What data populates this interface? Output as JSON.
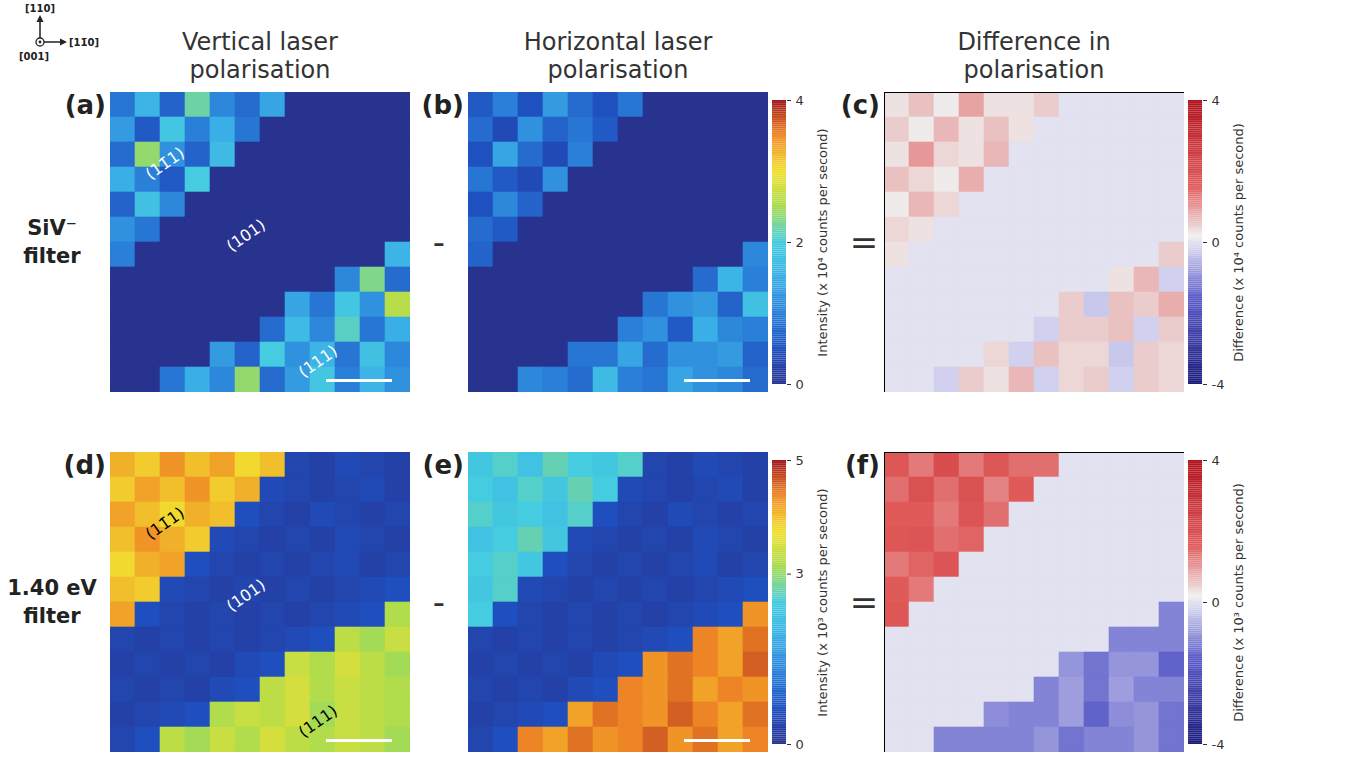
{
  "orientation_axes": {
    "up": "[110]",
    "right": "[11̄0]",
    "out": "[001]"
  },
  "column_titles": [
    "Vertical laser polarisation",
    "Horizontal laser polarisation",
    "Difference in polarisation"
  ],
  "row_titles": [
    "SiV⁻ filter",
    "1.40 eV filter"
  ],
  "operators": [
    "-",
    "="
  ],
  "colorbars": [
    {
      "label": "Intensity (x 10⁴ counts per second)",
      "range": [
        0,
        4
      ],
      "ticks": [
        0,
        2,
        4
      ]
    },
    {
      "label": "Difference (x 10⁴ counts per second)",
      "range": [
        -4,
        4
      ],
      "ticks": [
        -4,
        0,
        4
      ]
    },
    {
      "label": "Intensity (x 10³ counts per second)",
      "range": [
        0,
        5
      ],
      "ticks": [
        0,
        3,
        5
      ]
    },
    {
      "label": "Difference (x 10³ counts per second)",
      "range": [
        -4,
        4
      ],
      "ticks": [
        -4,
        0,
        4
      ]
    }
  ],
  "chart_data": [
    {
      "type": "heatmap",
      "title": "(a)",
      "color_range": [
        0,
        4
      ],
      "annotations": [
        "(11̄1)",
        "(101)",
        "(111)"
      ],
      "cells": [
        [
          0.9,
          1.6,
          0.7,
          2.2,
          1.1,
          0.8,
          1.4,
          0,
          0,
          0,
          0,
          0
        ],
        [
          1.3,
          0.6,
          1.9,
          1.0,
          1.5,
          0.9,
          0,
          0,
          0,
          0,
          0,
          0
        ],
        [
          0.8,
          2.4,
          1.2,
          0.7,
          1.7,
          0,
          0,
          0,
          0,
          0,
          0,
          0
        ],
        [
          1.5,
          1.0,
          0.6,
          2.0,
          0,
          0,
          0,
          0,
          0,
          0,
          0,
          0
        ],
        [
          0.7,
          1.8,
          1.1,
          0,
          0,
          0,
          0,
          0,
          0,
          0,
          0,
          0
        ],
        [
          1.2,
          0.9,
          0,
          0,
          0,
          0,
          0,
          0,
          0,
          0,
          0,
          0
        ],
        [
          1.0,
          0,
          0,
          0,
          0,
          0,
          0,
          0,
          0,
          0,
          0,
          1.6
        ],
        [
          0,
          0,
          0,
          0,
          0,
          0,
          0,
          0,
          0,
          1.1,
          2.3,
          0.8
        ],
        [
          0,
          0,
          0,
          0,
          0,
          0,
          0,
          1.4,
          0.9,
          1.9,
          1.2,
          2.6
        ],
        [
          0,
          0,
          0,
          0,
          0,
          0,
          0.8,
          1.7,
          1.1,
          2.1,
          0.9,
          1.5
        ],
        [
          0,
          0,
          0,
          0,
          1.3,
          0.7,
          2.0,
          1.2,
          1.6,
          0.9,
          1.8,
          1.1
        ],
        [
          0,
          0,
          0.9,
          1.5,
          1.1,
          2.4,
          0.8,
          1.3,
          1.9,
          1.0,
          1.6,
          1.2
        ]
      ]
    },
    {
      "type": "heatmap",
      "title": "(b)",
      "color_range": [
        0,
        4
      ],
      "cells": [
        [
          0.6,
          1.0,
          0.5,
          1.3,
          0.8,
          0.5,
          0.9,
          0,
          0,
          0,
          0,
          0
        ],
        [
          0.8,
          0.4,
          1.2,
          0.7,
          0.9,
          0.6,
          0,
          0,
          0,
          0,
          0,
          0
        ],
        [
          0.5,
          1.4,
          0.8,
          0.4,
          1.0,
          0,
          0,
          0,
          0,
          0,
          0,
          0
        ],
        [
          0.9,
          0.6,
          0.4,
          1.2,
          0,
          0,
          0,
          0,
          0,
          0,
          0,
          0
        ],
        [
          0.5,
          1.1,
          0.7,
          0,
          0,
          0,
          0,
          0,
          0,
          0,
          0,
          0
        ],
        [
          0.8,
          0.6,
          0,
          0,
          0,
          0,
          0,
          0,
          0,
          0,
          0,
          0
        ],
        [
          0.7,
          0,
          0,
          0,
          0,
          0,
          0,
          0,
          0,
          0,
          0,
          1.1
        ],
        [
          0,
          0,
          0,
          0,
          0,
          0,
          0,
          0,
          0,
          0.8,
          1.6,
          1.0
        ],
        [
          0,
          0,
          0,
          0,
          0,
          0,
          0,
          0.9,
          1.2,
          1.3,
          0.7,
          1.8
        ],
        [
          0,
          0,
          0,
          0,
          0,
          0,
          1.0,
          1.2,
          0.6,
          1.5,
          1.1,
          1.0
        ],
        [
          0,
          0,
          0,
          0,
          0.9,
          0.9,
          1.4,
          0.8,
          1.2,
          1.2,
          1.3,
          0.7
        ],
        [
          0,
          0,
          1.1,
          1.0,
          0.8,
          1.7,
          1.0,
          0.9,
          1.4,
          1.2,
          1.1,
          0.8
        ]
      ]
    },
    {
      "type": "heatmap",
      "title": "(c)",
      "color_range": [
        -4,
        4
      ],
      "cells": [
        [
          0.3,
          0.6,
          0.2,
          0.9,
          0.3,
          0.3,
          0.5,
          0,
          0,
          0,
          0,
          0
        ],
        [
          0.5,
          0.2,
          0.7,
          0.3,
          0.6,
          0.3,
          0,
          0,
          0,
          0,
          0,
          0
        ],
        [
          0.3,
          1.0,
          0.4,
          0.3,
          0.7,
          0,
          0,
          0,
          0,
          0,
          0,
          0
        ],
        [
          0.6,
          0.4,
          0.2,
          0.8,
          0,
          0,
          0,
          0,
          0,
          0,
          0,
          0
        ],
        [
          0.2,
          0.7,
          0.4,
          0,
          0,
          0,
          0,
          0,
          0,
          0,
          0,
          0
        ],
        [
          0.4,
          0.3,
          0,
          0,
          0,
          0,
          0,
          0,
          0,
          0,
          0,
          0
        ],
        [
          0.3,
          0,
          0,
          0,
          0,
          0,
          0,
          0,
          0,
          0,
          0,
          0.5
        ],
        [
          0,
          0,
          0,
          0,
          0,
          0,
          0,
          0,
          0,
          0.3,
          0.7,
          -0.2
        ],
        [
          0,
          0,
          0,
          0,
          0,
          0,
          0,
          0.5,
          -0.3,
          0.6,
          0.5,
          0.8
        ],
        [
          0,
          0,
          0,
          0,
          0,
          0,
          -0.2,
          0.5,
          0.5,
          0.6,
          -0.2,
          0.5
        ],
        [
          0,
          0,
          0,
          0,
          0.4,
          -0.2,
          0.6,
          0.4,
          0.4,
          -0.3,
          0.5,
          0.4
        ],
        [
          0,
          0,
          -0.2,
          0.5,
          0.3,
          0.7,
          -0.2,
          0.4,
          0.5,
          -0.2,
          0.5,
          0.4
        ]
      ]
    },
    {
      "type": "heatmap",
      "title": "(d)",
      "color_range": [
        0,
        5
      ],
      "annotations": [
        "(11̄1)",
        "(101)",
        "(111)"
      ],
      "cells": [
        [
          4.1,
          3.9,
          4.3,
          4.0,
          4.2,
          3.8,
          4.0,
          0.4,
          0.3,
          0.5,
          0.4,
          0.3
        ],
        [
          3.9,
          4.2,
          4.0,
          4.3,
          3.9,
          4.1,
          0.5,
          0.4,
          0.3,
          0.4,
          0.5,
          0.3
        ],
        [
          4.2,
          4.0,
          3.8,
          4.1,
          4.0,
          0.6,
          0.4,
          0.3,
          0.5,
          0.4,
          0.3,
          0.4
        ],
        [
          4.0,
          4.3,
          4.1,
          3.9,
          0.5,
          0.4,
          0.3,
          0.4,
          0.3,
          0.5,
          0.4,
          0.3
        ],
        [
          3.8,
          4.1,
          4.2,
          0.6,
          0.4,
          0.3,
          0.4,
          0.3,
          0.4,
          0.5,
          0.3,
          0.4
        ],
        [
          4.0,
          3.9,
          0.5,
          0.4,
          0.3,
          0.4,
          0.3,
          0.4,
          0.3,
          0.4,
          0.5,
          0.6
        ],
        [
          4.2,
          0.6,
          0.4,
          0.3,
          0.4,
          0.3,
          0.4,
          0.3,
          0.4,
          0.5,
          0.6,
          3.2
        ],
        [
          0.4,
          0.3,
          0.4,
          0.3,
          0.4,
          0.3,
          0.4,
          0.5,
          0.6,
          3.3,
          3.1,
          3.4
        ],
        [
          0.3,
          0.4,
          0.3,
          0.4,
          0.3,
          0.5,
          0.6,
          3.4,
          3.2,
          3.5,
          3.3,
          3.1
        ],
        [
          0.4,
          0.3,
          0.4,
          0.3,
          0.5,
          0.6,
          3.3,
          3.5,
          3.2,
          3.4,
          3.3,
          3.2
        ],
        [
          0.3,
          0.4,
          0.5,
          0.6,
          3.2,
          3.4,
          3.3,
          3.5,
          3.1,
          3.4,
          3.3,
          3.2
        ],
        [
          0.4,
          0.6,
          3.3,
          3.1,
          3.4,
          3.2,
          3.5,
          3.3,
          3.2,
          3.4,
          3.3,
          3.1
        ]
      ]
    },
    {
      "type": "heatmap",
      "title": "(e)",
      "color_range": [
        0,
        5
      ],
      "cells": [
        [
          2.4,
          2.6,
          2.3,
          2.7,
          2.5,
          2.4,
          2.6,
          0.4,
          0.3,
          0.5,
          0.4,
          0.3
        ],
        [
          2.5,
          2.3,
          2.6,
          2.4,
          2.7,
          2.5,
          0.5,
          0.4,
          0.3,
          0.4,
          0.5,
          0.3
        ],
        [
          2.6,
          2.4,
          2.5,
          2.3,
          2.6,
          0.6,
          0.4,
          0.3,
          0.5,
          0.4,
          0.3,
          0.4
        ],
        [
          2.3,
          2.5,
          2.7,
          2.4,
          0.5,
          0.4,
          0.3,
          0.4,
          0.3,
          0.5,
          0.4,
          0.3
        ],
        [
          2.5,
          2.6,
          2.4,
          0.6,
          0.4,
          0.3,
          0.4,
          0.3,
          0.4,
          0.5,
          0.3,
          0.4
        ],
        [
          2.4,
          2.6,
          0.5,
          0.4,
          0.3,
          0.4,
          0.3,
          0.4,
          0.3,
          0.4,
          0.5,
          0.6
        ],
        [
          2.5,
          0.6,
          0.4,
          0.3,
          0.4,
          0.3,
          0.4,
          0.3,
          0.4,
          0.5,
          0.6,
          4.3
        ],
        [
          0.4,
          0.3,
          0.4,
          0.3,
          0.4,
          0.3,
          0.4,
          0.5,
          0.6,
          4.4,
          4.2,
          4.5
        ],
        [
          0.3,
          0.4,
          0.3,
          0.4,
          0.3,
          0.5,
          0.6,
          4.3,
          4.5,
          4.4,
          4.2,
          4.6
        ],
        [
          0.4,
          0.3,
          0.4,
          0.3,
          0.5,
          0.6,
          4.4,
          4.3,
          4.5,
          4.2,
          4.4,
          4.3
        ],
        [
          0.3,
          0.4,
          0.5,
          0.6,
          4.2,
          4.5,
          4.4,
          4.3,
          4.6,
          4.4,
          4.2,
          4.5
        ],
        [
          0.4,
          0.6,
          4.4,
          4.2,
          4.5,
          4.3,
          4.4,
          4.6,
          4.3,
          4.5,
          4.2,
          4.4
        ]
      ]
    },
    {
      "type": "heatmap",
      "title": "(f)",
      "color_range": [
        -4,
        4
      ],
      "cells": [
        [
          1.7,
          1.3,
          2.0,
          1.3,
          1.7,
          1.4,
          1.4,
          0,
          0,
          0,
          0,
          0
        ],
        [
          1.4,
          1.9,
          1.4,
          1.9,
          1.2,
          1.6,
          0,
          0,
          0,
          0,
          0,
          0
        ],
        [
          1.6,
          1.6,
          1.3,
          1.8,
          1.4,
          0,
          0,
          0,
          0,
          0,
          0,
          0
        ],
        [
          1.7,
          1.8,
          1.4,
          1.5,
          0,
          0,
          0,
          0,
          0,
          0,
          0,
          0
        ],
        [
          1.3,
          1.5,
          1.8,
          0,
          0,
          0,
          0,
          0,
          0,
          0,
          0,
          0
        ],
        [
          1.6,
          1.3,
          0,
          0,
          0,
          0,
          0,
          0,
          0,
          0,
          0,
          0
        ],
        [
          1.7,
          0,
          0,
          0,
          0,
          0,
          0,
          0,
          0,
          0,
          0,
          -1.1
        ],
        [
          0,
          0,
          0,
          0,
          0,
          0,
          0,
          0,
          0,
          -1.1,
          -1.1,
          -1.1
        ],
        [
          0,
          0,
          0,
          0,
          0,
          0,
          0,
          -0.9,
          -1.3,
          -0.9,
          -0.9,
          -1.5
        ],
        [
          0,
          0,
          0,
          0,
          0,
          0,
          -1.1,
          -0.8,
          -1.3,
          -0.8,
          -1.1,
          -1.1
        ],
        [
          0,
          0,
          0,
          0,
          -1.0,
          -1.1,
          -1.1,
          -0.8,
          -1.5,
          -1.0,
          -0.9,
          -1.3
        ],
        [
          0,
          0,
          -1.1,
          -1.1,
          -1.1,
          -1.1,
          -0.9,
          -1.3,
          -1.1,
          -1.1,
          -0.9,
          -1.3
        ]
      ]
    }
  ]
}
